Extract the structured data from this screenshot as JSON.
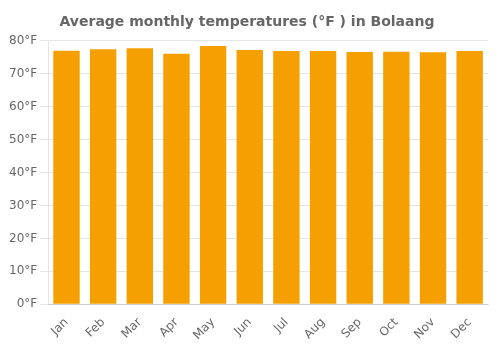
{
  "chart_data": {
    "type": "bar",
    "title": "Average monthly temperatures (°F ) in Bolaang",
    "categories": [
      "Jan",
      "Feb",
      "Mar",
      "Apr",
      "May",
      "Jun",
      "Jul",
      "Aug",
      "Sep",
      "Oct",
      "Nov",
      "Dec"
    ],
    "values": [
      77.0,
      77.4,
      77.7,
      76.1,
      78.4,
      77.2,
      76.9,
      76.9,
      76.6,
      76.7,
      76.5,
      76.9
    ],
    "color": "#F5A000",
    "ylim": [
      0,
      80
    ],
    "yticks": [
      {
        "value": 0,
        "label": "0°F"
      },
      {
        "value": 10,
        "label": "10°F"
      },
      {
        "value": 20,
        "label": "20°F"
      },
      {
        "value": 30,
        "label": "30°F"
      },
      {
        "value": 40,
        "label": "40°F"
      },
      {
        "value": 50,
        "label": "50°F"
      },
      {
        "value": 60,
        "label": "60°F"
      },
      {
        "value": 70,
        "label": "70°F"
      },
      {
        "value": 80,
        "label": "80°F"
      }
    ],
    "grid": true
  }
}
